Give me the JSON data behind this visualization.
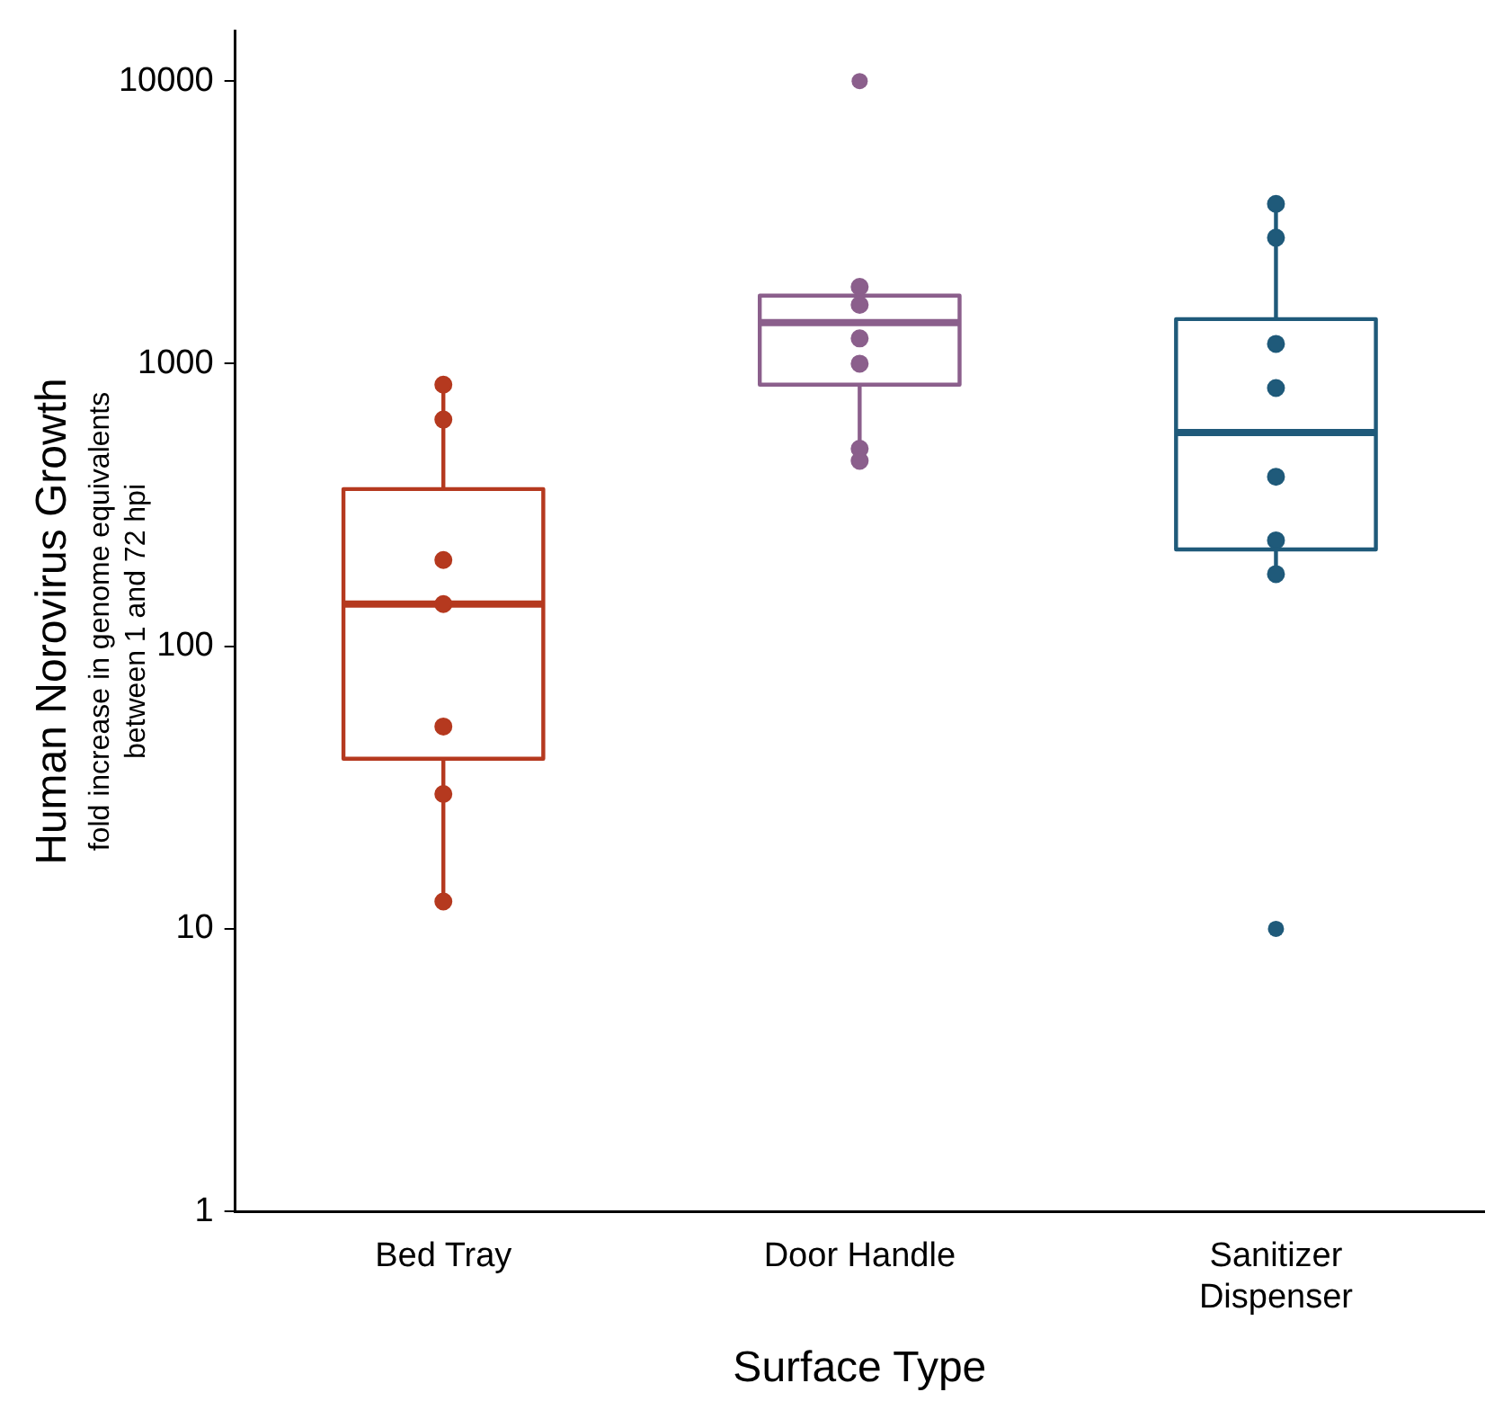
{
  "chart_data": {
    "type": "box",
    "xlabel": "Surface Type",
    "ylabel": "Human Norovirus Growth\nfold increase in genome equivalents\nbetween 1 and 72 hpi",
    "categories": [
      "Bed Tray",
      "Door Handle",
      "Sanitizer Dispenser"
    ],
    "colors": [
      "#b5391f",
      "#8b5f8c",
      "#1f5a7a"
    ],
    "boxes": [
      {
        "low": 12.5,
        "q1": 40,
        "median": 141,
        "q3": 360,
        "high": 843
      },
      {
        "low": 453,
        "q1": 843,
        "median": 1398,
        "q3": 1740,
        "high": 1870,
        "outliers": [
          10000
        ]
      },
      {
        "low": 180,
        "q1": 220,
        "median": 571,
        "q3": 1438,
        "high": 3675,
        "outliers": [
          10
        ]
      }
    ],
    "series": [
      {
        "type": "scatter",
        "x": [
          "Bed Tray",
          "Bed Tray",
          "Bed Tray",
          "Bed Tray",
          "Bed Tray",
          "Bed Tray",
          "Bed Tray",
          "Door Handle",
          "Door Handle",
          "Door Handle",
          "Door Handle",
          "Door Handle",
          "Door Handle",
          "Sanitizer Dispenser",
          "Sanitizer Dispenser",
          "Sanitizer Dispenser",
          "Sanitizer Dispenser",
          "Sanitizer Dispenser",
          "Sanitizer Dispenser",
          "Sanitizer Dispenser"
        ],
        "values": [
          843,
          634,
          202,
          141,
          52,
          30,
          12.5,
          1870,
          1615,
          1228,
          1000,
          500,
          453,
          3675,
          2790,
          1175,
          820,
          398,
          237,
          180
        ],
        "colors": [
          "#b5391f",
          "#b5391f",
          "#b5391f",
          "#b5391f",
          "#b5391f",
          "#b5391f",
          "#b5391f",
          "#8b5f8c",
          "#8b5f8c",
          "#8b5f8c",
          "#8b5f8c",
          "#8b5f8c",
          "#8b5f8c",
          "#1f5a7a",
          "#1f5a7a",
          "#1f5a7a",
          "#1f5a7a",
          "#1f5a7a",
          "#1f5a7a",
          "#1f5a7a"
        ]
      }
    ],
    "log": "y",
    "ylim": [
      1,
      15000
    ],
    "yticks": [
      1,
      10,
      100,
      1000,
      10000
    ],
    "grid": false,
    "legend": false,
    "marker": "circle"
  }
}
